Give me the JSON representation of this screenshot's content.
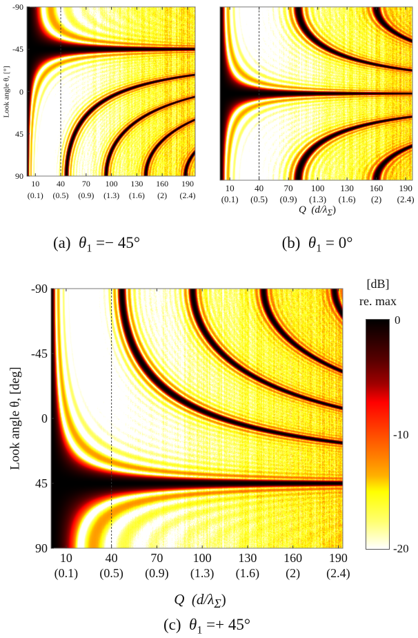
{
  "panels": [
    {
      "label": "(a)",
      "symbol": "θ",
      "subscript": "1",
      "relation": " =− 45°"
    },
    {
      "label": "(b)",
      "symbol": "θ",
      "subscript": "1",
      "relation": " = 0°"
    },
    {
      "label": "(c)",
      "symbol": "θ",
      "subscript": "1",
      "relation": " =+ 45°"
    }
  ],
  "xlabel": {
    "main": "Q",
    "paren_open": "(d/λ",
    "paren_sub": "Σ",
    "paren_close": ")"
  },
  "colorbar": {
    "label": "[dB]",
    "sublabel": "re. max",
    "ticks": [
      "0",
      "-10",
      "-20"
    ],
    "range": [
      -20,
      0
    ],
    "colormap": [
      "#000000",
      "#a00000",
      "#ff0000",
      "#ff8000",
      "#ffff00",
      "#ffffff"
    ]
  },
  "chart_data": [
    {
      "type": "heatmap",
      "panel": "(a)",
      "theta1_deg": -45,
      "x_ticks": [
        "10",
        "40",
        "70",
        "100",
        "130",
        "160",
        "190"
      ],
      "x_ticks_secondary": [
        "(0.1)",
        "(0.5)",
        "(0.9)",
        "(1.3)",
        "(1.6)",
        "(2)",
        "(2.4)"
      ],
      "y_ticks": [
        "-90",
        "-45",
        "0",
        "45",
        "90"
      ],
      "ylabel": "Look angle θ, [°]",
      "xlim": [
        0,
        199
      ],
      "ylim": [
        -90,
        90
      ],
      "reference_line_x": 40,
      "grating_lobe_end_Q": [
        47,
        94,
        141,
        187
      ]
    },
    {
      "type": "heatmap",
      "panel": "(b)",
      "theta1_deg": 0,
      "x_ticks": [
        "10",
        "40",
        "70",
        "100",
        "130",
        "160",
        "190"
      ],
      "x_ticks_secondary": [
        "(0.1)",
        "(0.5)",
        "(0.9)",
        "(1.3)",
        "(1.6)",
        "(2)",
        "(2.4)"
      ],
      "y_ticks": [],
      "ylabel": "",
      "xlim": [
        0,
        197
      ],
      "ylim": [
        -90,
        90
      ],
      "reference_line_x": 40,
      "grating_lobe_end_Q": [
        80,
        160
      ]
    },
    {
      "type": "heatmap",
      "panel": "(c)",
      "theta1_deg": 45,
      "x_ticks": [
        "10",
        "40",
        "70",
        "100",
        "130",
        "160",
        "190"
      ],
      "x_ticks_secondary": [
        "(0.1)",
        "(0.5)",
        "(0.9)",
        "(1.3)",
        "(1.6)",
        "(2)",
        "(2.4)"
      ],
      "y_ticks": [
        "-90",
        "-45",
        "0",
        "45",
        "90"
      ],
      "ylabel": "Look angle θ, [deg]",
      "xlim": [
        0,
        193
      ],
      "ylim": [
        -90,
        90
      ],
      "reference_line_x": 40,
      "grating_lobe_end_Q": [
        47,
        94,
        141,
        187
      ]
    }
  ]
}
